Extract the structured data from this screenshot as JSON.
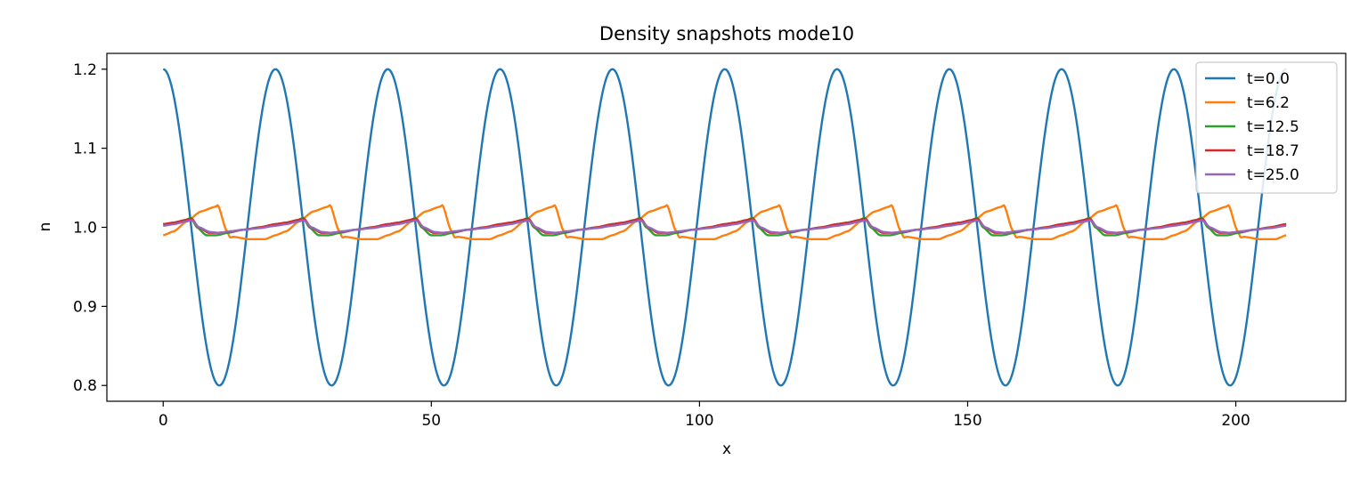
{
  "chart_data": {
    "type": "line",
    "title": "Density snapshots  mode10",
    "xlabel": "x",
    "ylabel": "n",
    "xlim": [
      -10.5,
      220.5
    ],
    "ylim": [
      0.78,
      1.22
    ],
    "xticks": [
      0,
      50,
      100,
      150,
      200
    ],
    "yticks": [
      0.8,
      0.9,
      1.0,
      1.1,
      1.2
    ],
    "xtick_labels": [
      "0",
      "50",
      "100",
      "150",
      "200"
    ],
    "ytick_labels": [
      "0.8",
      "0.9",
      "1.0",
      "1.1",
      "1.2"
    ],
    "grid": false,
    "legend_position": "top-right",
    "domain_length": 209.4,
    "wave_periods": 10,
    "series": [
      {
        "name": "t=0.0",
        "color": "#1f77b4",
        "kind": "cosine",
        "mean": 1.0,
        "amplitude": 0.2,
        "x": [
          0,
          10.47,
          20.94,
          31.41,
          41.88,
          52.35,
          62.82,
          73.29,
          83.76,
          94.23,
          104.7,
          115.17,
          125.64,
          136.11,
          146.58,
          157.05,
          167.52,
          177.99,
          188.46,
          198.93,
          209.4
        ],
        "y": [
          1.2,
          0.8,
          1.2,
          0.8,
          1.2,
          0.8,
          1.2,
          0.8,
          1.2,
          0.8,
          1.2,
          0.8,
          1.2,
          0.8,
          1.2,
          0.8,
          1.2,
          0.8,
          1.2,
          0.8,
          1.2
        ]
      },
      {
        "name": "t=6.2",
        "color": "#ff7f0e",
        "kind": "steepened",
        "keypoints": [
          [
            0,
            0.99
          ],
          [
            2,
            0.995
          ],
          [
            4.5,
            1.008
          ],
          [
            7,
            1.02
          ],
          [
            9.7,
            1.026
          ],
          [
            10.2,
            1.028
          ],
          [
            11.8,
            0.996
          ],
          [
            12.5,
            0.987
          ],
          [
            13,
            0.988
          ],
          [
            16,
            0.985
          ],
          [
            19,
            0.985
          ],
          [
            20.94,
            0.99
          ]
        ]
      },
      {
        "name": "t=12.5",
        "color": "#2ca02c",
        "kind": "sawtooth",
        "keypoints": [
          [
            0,
            1.004
          ],
          [
            2,
            1.006
          ],
          [
            4,
            1.009
          ],
          [
            5.2,
            1.012
          ],
          [
            6.3,
            1.0
          ],
          [
            8,
            0.99
          ],
          [
            10,
            0.99
          ],
          [
            12,
            0.993
          ],
          [
            15,
            0.997
          ],
          [
            18,
            1.0
          ],
          [
            20.94,
            1.004
          ]
        ]
      },
      {
        "name": "t=18.7",
        "color": "#d62728",
        "kind": "sawtooth",
        "keypoints": [
          [
            0,
            1.004
          ],
          [
            2,
            1.006
          ],
          [
            4,
            1.009
          ],
          [
            5.3,
            1.011
          ],
          [
            6.6,
            1.0
          ],
          [
            8.5,
            0.993
          ],
          [
            10,
            0.993
          ],
          [
            12,
            0.994
          ],
          [
            15,
            0.997
          ],
          [
            18,
            1.0
          ],
          [
            20.94,
            1.004
          ]
        ]
      },
      {
        "name": "t=25.0",
        "color": "#9467bd",
        "kind": "sawtooth",
        "keypoints": [
          [
            0,
            1.002
          ],
          [
            2,
            1.004
          ],
          [
            4,
            1.007
          ],
          [
            5.3,
            1.009
          ],
          [
            6.7,
            1.0
          ],
          [
            8.7,
            0.994
          ],
          [
            10.5,
            0.993
          ],
          [
            12.5,
            0.995
          ],
          [
            15,
            0.997
          ],
          [
            18,
            0.999
          ],
          [
            20.94,
            1.002
          ]
        ]
      }
    ]
  }
}
